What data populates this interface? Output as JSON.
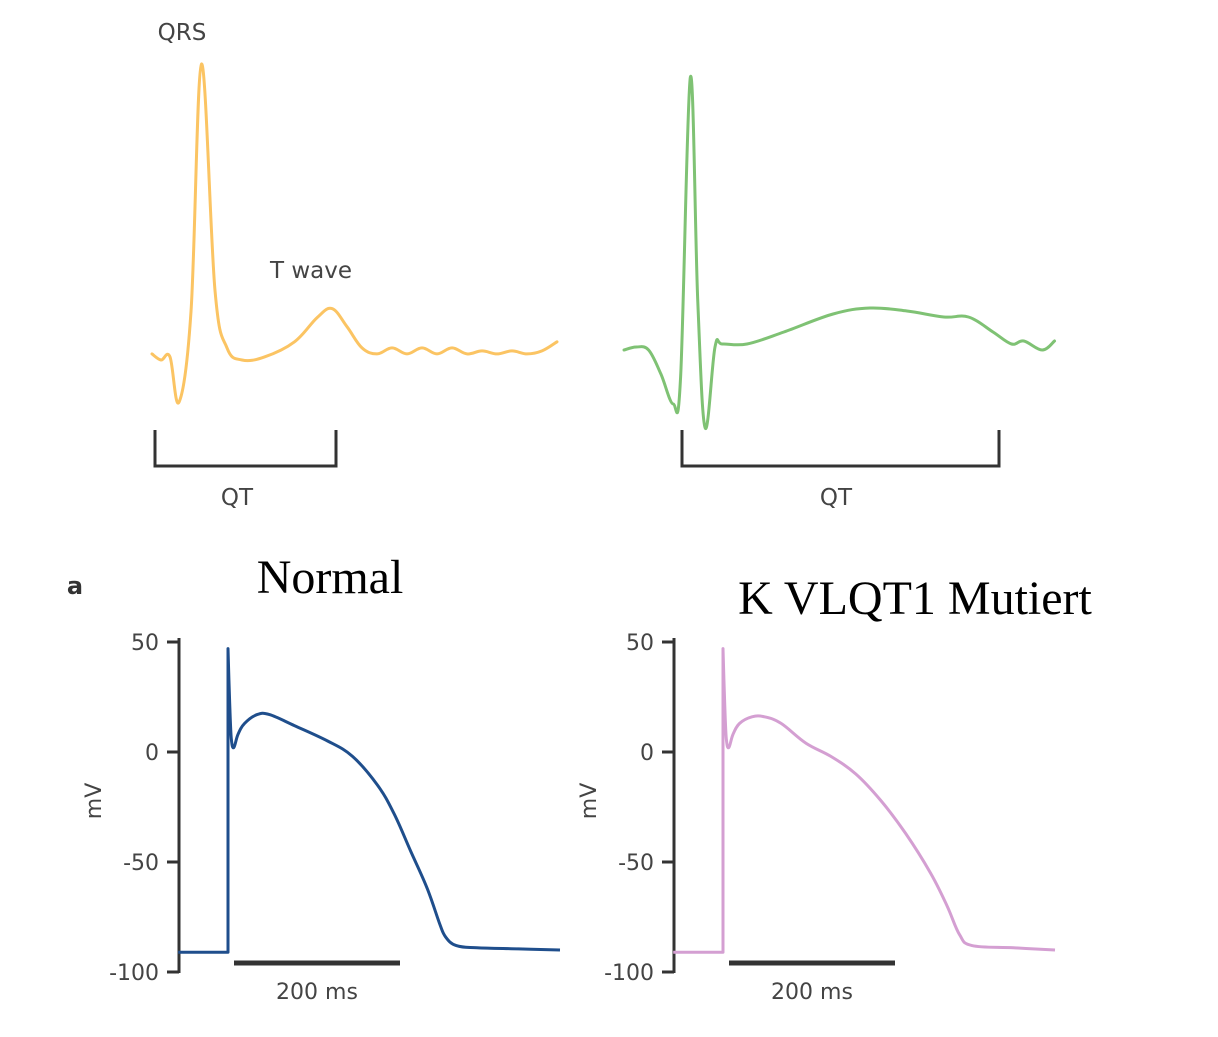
{
  "panel_letter": "a",
  "titles": {
    "normal": "Normal",
    "mutant": "K VLQT1 Mutiert"
  },
  "colors": {
    "ecg_normal": "#fbc463",
    "ecg_mutant": "#7fc274",
    "ap_normal": "#1f4e8c",
    "ap_mutant": "#d49fd2",
    "axis": "#333333",
    "label": "#444444"
  },
  "chart_data": [
    {
      "type": "line",
      "name": "ecg-normal",
      "annotations": [
        {
          "text": "QRS",
          "label_key": "qrs"
        },
        {
          "text": "T wave",
          "label_key": "twave"
        }
      ],
      "interval_label": "QT",
      "points": [
        [
          0,
          0.04
        ],
        [
          0.06,
          0.02
        ],
        [
          0.12,
          0.03
        ],
        [
          0.18,
          -0.12
        ],
        [
          0.26,
          0.18
        ],
        [
          0.33,
          1.0
        ],
        [
          0.42,
          0.25
        ],
        [
          0.5,
          0.06
        ],
        [
          0.6,
          0.02
        ],
        [
          0.75,
          0.03
        ],
        [
          0.95,
          0.08
        ],
        [
          1.1,
          0.16
        ],
        [
          1.2,
          0.19
        ],
        [
          1.3,
          0.13
        ],
        [
          1.4,
          0.06
        ],
        [
          1.5,
          0.04
        ],
        [
          1.6,
          0.06
        ],
        [
          1.7,
          0.04
        ],
        [
          1.8,
          0.06
        ],
        [
          1.9,
          0.04
        ],
        [
          2.0,
          0.06
        ],
        [
          2.1,
          0.04
        ],
        [
          2.2,
          0.05
        ],
        [
          2.3,
          0.04
        ],
        [
          2.4,
          0.05
        ],
        [
          2.5,
          0.04
        ],
        [
          2.6,
          0.05
        ],
        [
          2.7,
          0.08
        ]
      ],
      "qt_interval": [
        0.0,
        1.41
      ]
    },
    {
      "type": "line",
      "name": "ecg-mutant",
      "interval_label": "QT",
      "points": [
        [
          0,
          0.04
        ],
        [
          0.1,
          0.05
        ],
        [
          0.2,
          0.04
        ],
        [
          0.3,
          -0.04
        ],
        [
          0.4,
          -0.14
        ],
        [
          0.46,
          -0.05
        ],
        [
          0.54,
          0.95
        ],
        [
          0.6,
          0.2
        ],
        [
          0.66,
          -0.22
        ],
        [
          0.74,
          0.05
        ],
        [
          0.8,
          0.06
        ],
        [
          1.0,
          0.06
        ],
        [
          1.3,
          0.1
        ],
        [
          1.7,
          0.16
        ],
        [
          2.0,
          0.18
        ],
        [
          2.3,
          0.17
        ],
        [
          2.6,
          0.15
        ],
        [
          2.8,
          0.15
        ],
        [
          3.0,
          0.1
        ],
        [
          3.15,
          0.06
        ],
        [
          3.25,
          0.07
        ],
        [
          3.4,
          0.04
        ],
        [
          3.5,
          0.07
        ]
      ],
      "qt_interval": [
        0.45,
        2.95
      ]
    },
    {
      "type": "line",
      "name": "ap-normal",
      "ylabel": "mV",
      "yticks": [
        50,
        0,
        -50,
        -100
      ],
      "ylim": [
        -100,
        50
      ],
      "scale_bar_label": "200 ms",
      "scale_bar_ms": 200,
      "points": [
        [
          -60,
          -91
        ],
        [
          0,
          -91
        ],
        [
          0,
          47
        ],
        [
          2,
          22
        ],
        [
          4,
          6
        ],
        [
          7,
          2
        ],
        [
          12,
          8
        ],
        [
          20,
          13
        ],
        [
          35,
          17
        ],
        [
          50,
          17
        ],
        [
          80,
          12
        ],
        [
          120,
          5
        ],
        [
          150,
          -2
        ],
        [
          180,
          -15
        ],
        [
          200,
          -28
        ],
        [
          220,
          -45
        ],
        [
          240,
          -62
        ],
        [
          255,
          -78
        ],
        [
          262,
          -84
        ],
        [
          275,
          -88
        ],
        [
          300,
          -89
        ],
        [
          350,
          -89.5
        ],
        [
          400,
          -90
        ]
      ]
    },
    {
      "type": "line",
      "name": "ap-mutant",
      "ylabel": "mV",
      "yticks": [
        50,
        0,
        -50,
        -100
      ],
      "ylim": [
        -100,
        50
      ],
      "scale_bar_label": "200 ms",
      "scale_bar_ms": 200,
      "points": [
        [
          -60,
          -91
        ],
        [
          0,
          -91
        ],
        [
          0,
          47
        ],
        [
          2,
          22
        ],
        [
          4,
          6
        ],
        [
          7,
          2
        ],
        [
          12,
          8
        ],
        [
          20,
          13
        ],
        [
          35,
          16
        ],
        [
          50,
          16
        ],
        [
          70,
          13
        ],
        [
          100,
          4
        ],
        [
          130,
          -2
        ],
        [
          160,
          -10
        ],
        [
          190,
          -22
        ],
        [
          220,
          -37
        ],
        [
          250,
          -55
        ],
        [
          270,
          -70
        ],
        [
          285,
          -83
        ],
        [
          300,
          -88
        ],
        [
          350,
          -89
        ],
        [
          400,
          -90
        ]
      ]
    }
  ]
}
